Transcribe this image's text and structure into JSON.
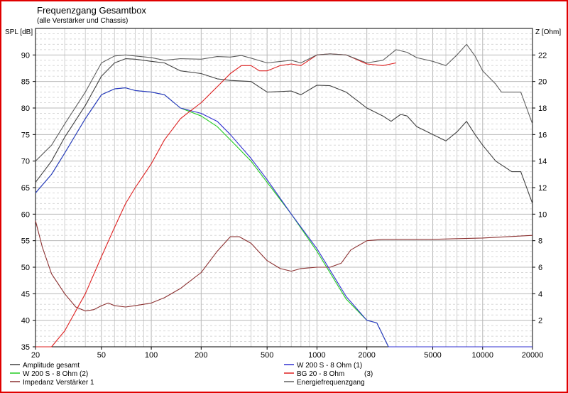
{
  "chart_data": {
    "type": "line",
    "title": "Frequenzgang Gesamtbox",
    "subtitle": "(alle Verstärker und Chassis)",
    "ylabel_left": "SPL [dB]",
    "ylabel_right": "Z [Ohm]",
    "xscale": "log",
    "xlim": [
      20,
      20000
    ],
    "ylim_left": [
      35,
      95
    ],
    "ylim_right": [
      0,
      24
    ],
    "grid": true,
    "x_ticks": [
      20,
      50,
      100,
      200,
      500,
      1000,
      2000,
      5000,
      10000,
      20000
    ],
    "y_left_ticks": [
      35,
      40,
      45,
      50,
      55,
      60,
      65,
      70,
      75,
      80,
      85,
      90
    ],
    "y_right_ticks": [
      2,
      4,
      6,
      8,
      10,
      12,
      14,
      16,
      18,
      20,
      22
    ],
    "series": [
      {
        "name": "Amplitude gesamt",
        "color": "#404040",
        "axis": "left",
        "points": [
          [
            20,
            66
          ],
          [
            25,
            70
          ],
          [
            30,
            74.5
          ],
          [
            40,
            80.5
          ],
          [
            50,
            86
          ],
          [
            60,
            88.5
          ],
          [
            70,
            89.3
          ],
          [
            80,
            89.2
          ],
          [
            100,
            88.8
          ],
          [
            120,
            88.5
          ],
          [
            150,
            87
          ],
          [
            200,
            86.5
          ],
          [
            250,
            85.5
          ],
          [
            300,
            85.2
          ],
          [
            400,
            85
          ],
          [
            500,
            83
          ],
          [
            700,
            83.2
          ],
          [
            800,
            82.5
          ],
          [
            1000,
            84.3
          ],
          [
            1200,
            84.2
          ],
          [
            1500,
            83
          ],
          [
            2000,
            80
          ],
          [
            2500,
            78.5
          ],
          [
            2800,
            77.5
          ],
          [
            3200,
            78.8
          ],
          [
            3500,
            78.5
          ],
          [
            4000,
            76.5
          ],
          [
            5000,
            75
          ],
          [
            6000,
            73.8
          ],
          [
            7000,
            75.5
          ],
          [
            8000,
            77.5
          ],
          [
            9000,
            75
          ],
          [
            10000,
            73
          ],
          [
            12000,
            70
          ],
          [
            15000,
            68
          ],
          [
            17000,
            68
          ],
          [
            20000,
            62
          ]
        ]
      },
      {
        "name": "W 200 S - 8 Ohm (2)",
        "color": "#22cc22",
        "axis": "left",
        "points": [
          [
            20,
            64
          ],
          [
            25,
            67.5
          ],
          [
            30,
            71.5
          ],
          [
            40,
            78
          ],
          [
            50,
            82.5
          ],
          [
            60,
            83.6
          ],
          [
            70,
            83.8
          ],
          [
            80,
            83.3
          ],
          [
            100,
            83
          ],
          [
            120,
            82.5
          ],
          [
            150,
            80
          ],
          [
            200,
            78.5
          ],
          [
            250,
            76.5
          ],
          [
            300,
            74
          ],
          [
            400,
            70
          ],
          [
            500,
            66
          ],
          [
            700,
            60
          ],
          [
            1000,
            53
          ],
          [
            1500,
            44
          ],
          [
            2000,
            40
          ],
          [
            2300,
            39.5
          ],
          [
            2700,
            35
          ],
          [
            3000,
            35
          ],
          [
            20000,
            35
          ]
        ]
      },
      {
        "name": "Impedanz Verstärker 1",
        "color": "#8b3030",
        "axis": "right",
        "points": [
          [
            20,
            9.5
          ],
          [
            22,
            7.5
          ],
          [
            25,
            5.5
          ],
          [
            30,
            4
          ],
          [
            35,
            3
          ],
          [
            40,
            2.7
          ],
          [
            45,
            2.8
          ],
          [
            50,
            3.1
          ],
          [
            55,
            3.3
          ],
          [
            60,
            3.1
          ],
          [
            70,
            3
          ],
          [
            80,
            3.1
          ],
          [
            100,
            3.3
          ],
          [
            120,
            3.7
          ],
          [
            150,
            4.4
          ],
          [
            200,
            5.6
          ],
          [
            250,
            7.2
          ],
          [
            300,
            8.3
          ],
          [
            340,
            8.3
          ],
          [
            400,
            7.8
          ],
          [
            500,
            6.5
          ],
          [
            600,
            5.9
          ],
          [
            700,
            5.7
          ],
          [
            800,
            5.9
          ],
          [
            1000,
            6
          ],
          [
            1200,
            6
          ],
          [
            1400,
            6.3
          ],
          [
            1600,
            7.3
          ],
          [
            2000,
            8
          ],
          [
            2500,
            8.1
          ],
          [
            3000,
            8.1
          ],
          [
            5000,
            8.1
          ],
          [
            10000,
            8.2
          ],
          [
            20000,
            8.4
          ]
        ]
      },
      {
        "name": "W 200 S - 8 Ohm (1)",
        "color": "#3030d0",
        "axis": "left",
        "points": [
          [
            20,
            64
          ],
          [
            25,
            67.5
          ],
          [
            30,
            71.5
          ],
          [
            40,
            78
          ],
          [
            50,
            82.5
          ],
          [
            60,
            83.6
          ],
          [
            70,
            83.8
          ],
          [
            80,
            83.3
          ],
          [
            100,
            83
          ],
          [
            120,
            82.5
          ],
          [
            150,
            80
          ],
          [
            200,
            79
          ],
          [
            250,
            77.5
          ],
          [
            300,
            75
          ],
          [
            400,
            70.5
          ],
          [
            500,
            66.5
          ],
          [
            700,
            60
          ],
          [
            1000,
            53.5
          ],
          [
            1500,
            44.5
          ],
          [
            2000,
            40
          ],
          [
            2300,
            39.5
          ],
          [
            2700,
            35
          ],
          [
            3000,
            35
          ],
          [
            20000,
            35
          ]
        ]
      },
      {
        "name": "BG 20 - 8 Ohm",
        "name_suffix": "(3)",
        "color": "#dd2020",
        "axis": "left",
        "points": [
          [
            20,
            35
          ],
          [
            25,
            35
          ],
          [
            30,
            38
          ],
          [
            40,
            45
          ],
          [
            50,
            52
          ],
          [
            60,
            57.5
          ],
          [
            70,
            62
          ],
          [
            80,
            65
          ],
          [
            100,
            69.5
          ],
          [
            120,
            74
          ],
          [
            150,
            78
          ],
          [
            200,
            81
          ],
          [
            250,
            84
          ],
          [
            300,
            86.5
          ],
          [
            350,
            88
          ],
          [
            400,
            88
          ],
          [
            450,
            87
          ],
          [
            500,
            87
          ],
          [
            600,
            88
          ],
          [
            700,
            88.3
          ],
          [
            800,
            88
          ],
          [
            1000,
            90
          ],
          [
            1200,
            90.2
          ],
          [
            1500,
            90
          ],
          [
            2000,
            88.3
          ],
          [
            2500,
            88
          ],
          [
            3000,
            88.5
          ]
        ]
      },
      {
        "name": "Energiefrequenzgang",
        "color": "#606060",
        "axis": "left",
        "points": [
          [
            20,
            70
          ],
          [
            25,
            73
          ],
          [
            30,
            77
          ],
          [
            40,
            83
          ],
          [
            50,
            88.5
          ],
          [
            60,
            89.8
          ],
          [
            70,
            90
          ],
          [
            80,
            89.8
          ],
          [
            100,
            89.5
          ],
          [
            120,
            89
          ],
          [
            150,
            89.3
          ],
          [
            200,
            89.2
          ],
          [
            250,
            89.7
          ],
          [
            300,
            89.6
          ],
          [
            350,
            89.9
          ],
          [
            400,
            89.4
          ],
          [
            500,
            88.5
          ],
          [
            700,
            89
          ],
          [
            800,
            88.5
          ],
          [
            1000,
            90
          ],
          [
            1200,
            90.2
          ],
          [
            1500,
            90
          ],
          [
            2000,
            88.5
          ],
          [
            2500,
            89
          ],
          [
            3000,
            91
          ],
          [
            3500,
            90.5
          ],
          [
            4000,
            89.5
          ],
          [
            5000,
            88.8
          ],
          [
            6000,
            88
          ],
          [
            7000,
            90
          ],
          [
            8000,
            92
          ],
          [
            9000,
            89.8
          ],
          [
            10000,
            87
          ],
          [
            12000,
            84.5
          ],
          [
            13000,
            83
          ],
          [
            15000,
            83
          ],
          [
            17000,
            83
          ],
          [
            20000,
            77
          ]
        ]
      }
    ],
    "legend": [
      {
        "label": "Amplitude gesamt",
        "color": "#404040"
      },
      {
        "label": "W 200 S - 8 Ohm (2)",
        "color": "#22cc22"
      },
      {
        "label": "Impedanz Verstärker 1",
        "color": "#8b3030"
      },
      {
        "label": "W 200 S - 8 Ohm (1)",
        "color": "#3030d0"
      },
      {
        "label": "BG 20 - 8 Ohm",
        "suffix": "(3)",
        "color": "#dd2020"
      },
      {
        "label": "Energiefrequenzgang",
        "color": "#606060"
      }
    ]
  }
}
